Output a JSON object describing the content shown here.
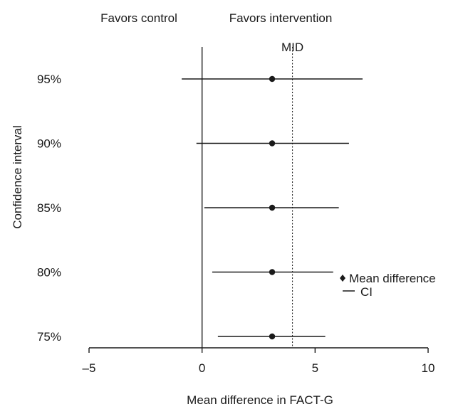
{
  "chart_data": {
    "type": "forest",
    "orientation": "horizontal",
    "categories": [
      "95%",
      "90%",
      "85%",
      "80%",
      "75%"
    ],
    "series": [
      {
        "name": "Mean difference",
        "values": [
          3.1,
          3.1,
          3.1,
          3.1,
          3.1
        ]
      },
      {
        "name": "CI",
        "lower": [
          -0.9,
          -0.25,
          0.1,
          0.45,
          0.7
        ],
        "upper": [
          7.1,
          6.5,
          6.05,
          5.8,
          5.45
        ]
      }
    ],
    "xlabel": "Mean difference in FACT-G",
    "ylabel": "Confidence interval",
    "xlim": [
      -5,
      10
    ],
    "xticks": [
      -5,
      0,
      5,
      10
    ],
    "xtick_labels": [
      "–5",
      "0",
      "5",
      "10"
    ],
    "reference_lines": [
      {
        "value": 0,
        "style": "solid",
        "label": ""
      },
      {
        "value": 4,
        "style": "dotted",
        "label": "MID"
      }
    ],
    "annotations": {
      "left": "Favors control",
      "right": "Favors intervention"
    },
    "legend": {
      "placement": "bottom-right",
      "entries": [
        {
          "symbol": "diamond",
          "label": "Mean difference"
        },
        {
          "symbol": "line",
          "label": "CI"
        }
      ]
    },
    "grid": false
  },
  "colors": {
    "ink": "#1a1a1a",
    "background": "#ffffff"
  }
}
